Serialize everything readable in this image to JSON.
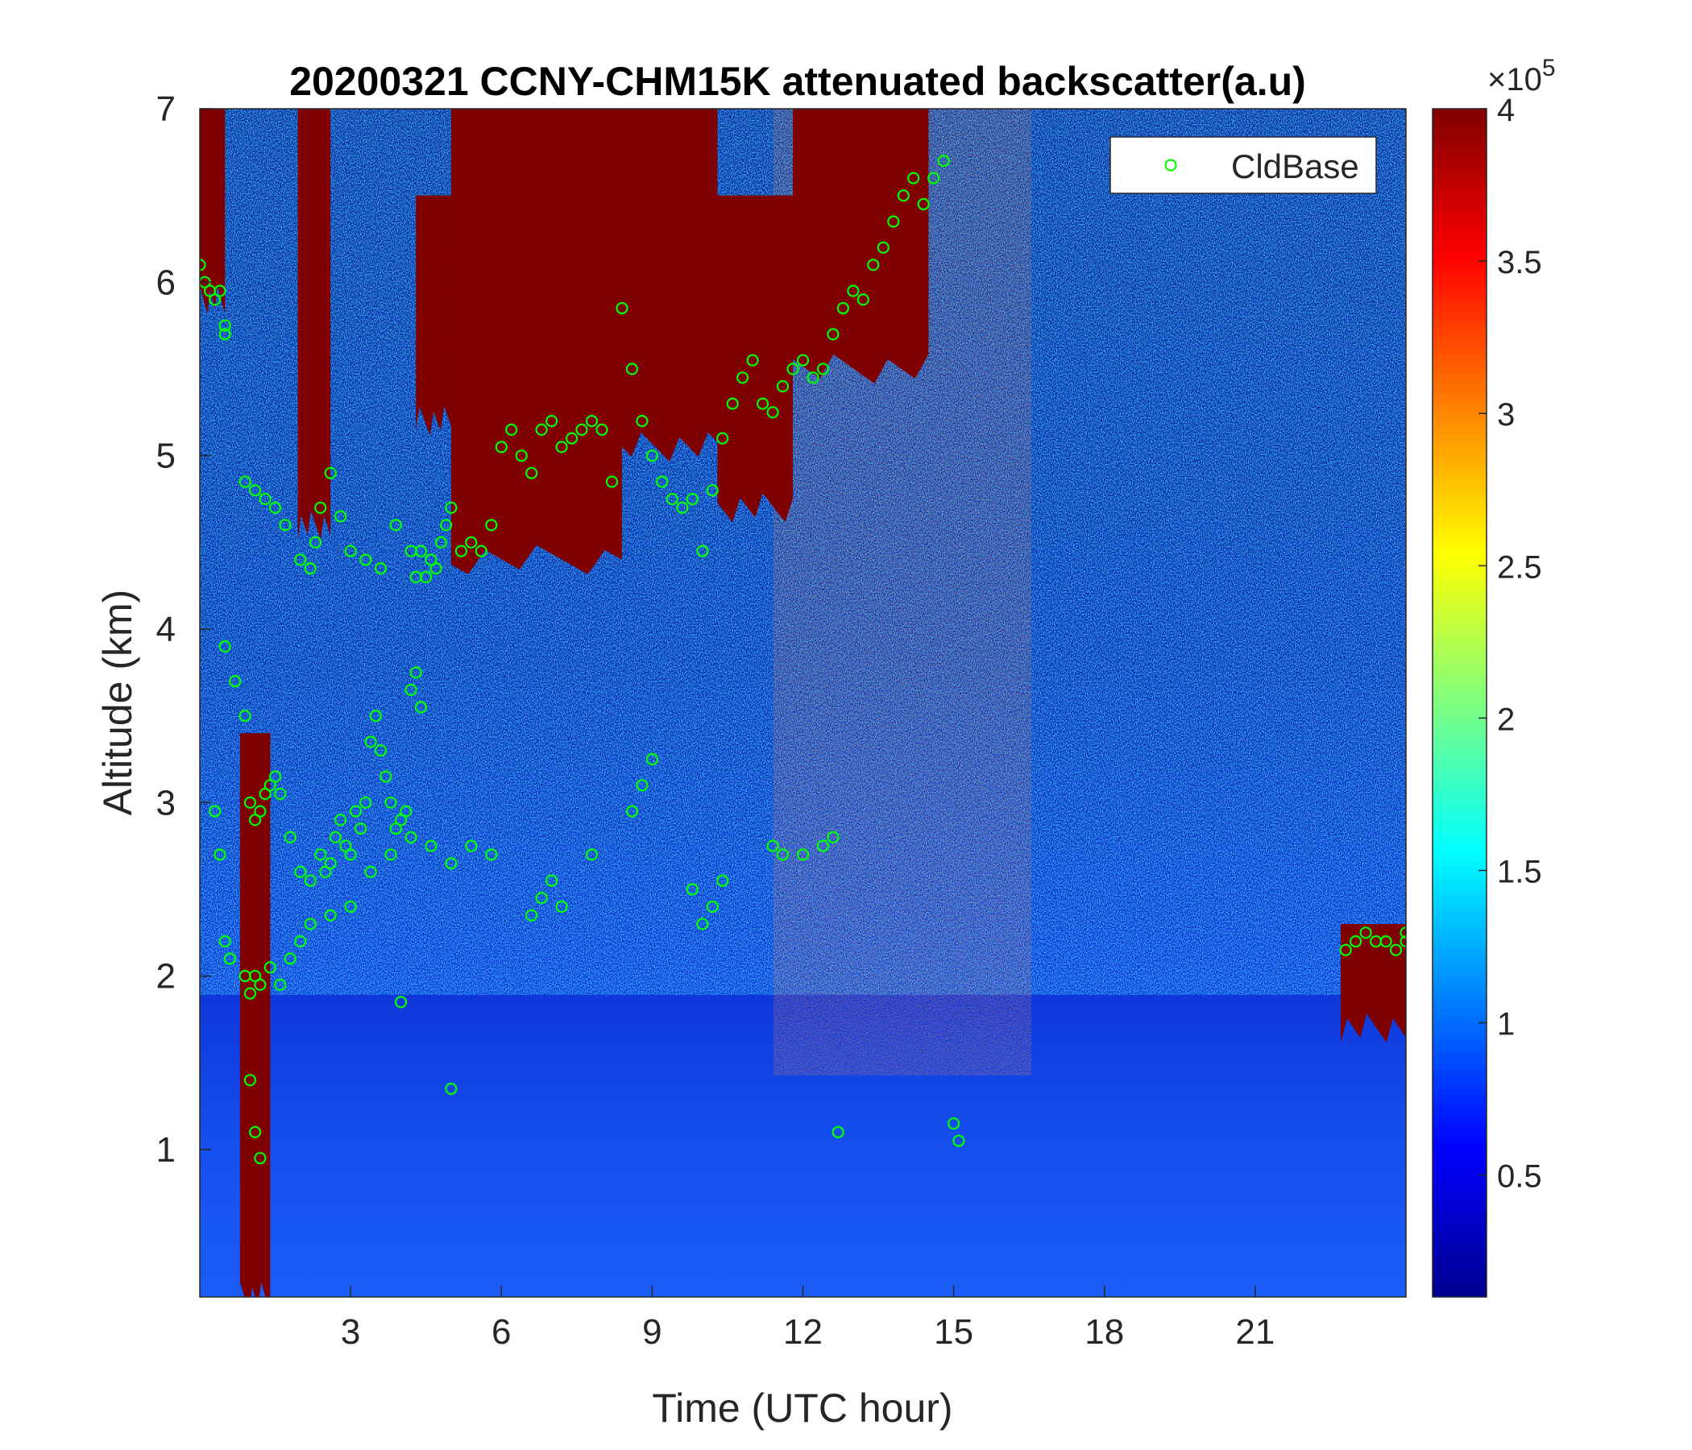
{
  "chart_data": {
    "type": "heatmap",
    "title": "20200321 CCNY-CHM15K attenuated backscatter(a.u)",
    "xlabel": "Time (UTC hour)",
    "ylabel": "Altitude (km)",
    "xlim": [
      0,
      24
    ],
    "ylim": [
      0.15,
      7
    ],
    "x_ticks": [
      3,
      6,
      9,
      12,
      15,
      18,
      21
    ],
    "y_ticks": [
      1,
      2,
      3,
      4,
      5,
      6,
      7
    ],
    "colorbar": {
      "colormap": "jet",
      "clim": [
        0.1,
        4
      ],
      "ticks": [
        0.5,
        1,
        1.5,
        2,
        2.5,
        3,
        3.5,
        4
      ],
      "exponent_label": "×10",
      "exponent": "5"
    },
    "legend": {
      "placement": "top-right",
      "entries": [
        {
          "label": "CldBase",
          "marker": "circle",
          "color": "#00ff00"
        }
      ]
    },
    "cloud_layers": [
      {
        "x": [
          0.0,
          0.5
        ],
        "base": 5.9,
        "top": 7.0
      },
      {
        "x": [
          1.95,
          2.6
        ],
        "base": 4.6,
        "top": 7.0
      },
      {
        "x": [
          4.3,
          5.0
        ],
        "base": 5.2,
        "top": 6.5
      },
      {
        "x": [
          5.0,
          8.4
        ],
        "base": 4.4,
        "top": 7.0
      },
      {
        "x": [
          8.4,
          10.3
        ],
        "base": 5.05,
        "top": 7.0
      },
      {
        "x": [
          10.3,
          11.8
        ],
        "base": 4.7,
        "top": 6.5
      },
      {
        "x": [
          11.8,
          14.5
        ],
        "base": 5.5,
        "top": 7.0
      },
      {
        "x": [
          0.8,
          1.4
        ],
        "base": 0.15,
        "top": 3.4
      },
      {
        "x": [
          22.7,
          24.0
        ],
        "base": 1.7,
        "top": 2.3
      }
    ],
    "series": [
      {
        "name": "CldBase",
        "x": [
          0.0,
          0.1,
          0.2,
          0.3,
          0.4,
          0.5,
          0.5,
          0.9,
          1.1,
          1.3,
          1.5,
          1.7,
          2.0,
          2.2,
          2.3,
          2.4,
          2.6,
          2.8,
          3.0,
          3.3,
          3.6,
          3.9,
          4.2,
          4.3,
          4.4,
          4.5,
          4.6,
          4.7,
          4.8,
          4.9,
          5.0,
          5.2,
          5.4,
          5.6,
          5.8,
          6.0,
          6.2,
          6.4,
          6.6,
          6.8,
          7.0,
          7.2,
          7.4,
          7.6,
          7.8,
          8.0,
          8.2,
          8.4,
          8.6,
          8.8,
          9.0,
          9.2,
          9.4,
          9.6,
          9.8,
          10.0,
          10.2,
          10.4,
          10.6,
          10.8,
          11.0,
          11.2,
          11.4,
          11.6,
          11.8,
          12.0,
          12.2,
          12.4,
          12.6,
          12.8,
          13.0,
          13.2,
          13.4,
          13.6,
          13.8,
          14.0,
          14.2,
          14.4,
          14.6,
          14.8,
          0.3,
          0.5,
          0.7,
          0.9,
          1.0,
          1.1,
          1.2,
          1.3,
          1.4,
          1.5,
          1.6,
          1.8,
          2.0,
          2.2,
          2.4,
          2.5,
          2.6,
          2.7,
          2.8,
          2.9,
          3.0,
          3.1,
          3.2,
          3.3,
          3.4,
          3.5,
          3.6,
          3.7,
          3.8,
          3.9,
          4.0,
          4.1,
          4.2,
          4.3,
          4.4,
          0.9,
          1.0,
          1.1,
          1.2,
          1.4,
          1.6,
          1.8,
          2.0,
          2.2,
          2.6,
          3.0,
          3.4,
          3.8,
          4.2,
          4.6,
          5.0,
          5.4,
          5.8,
          6.6,
          6.8,
          7.0,
          7.2,
          7.8,
          8.6,
          8.8,
          9.0,
          9.8,
          10.0,
          10.2,
          10.4,
          11.4,
          11.6,
          12.0,
          12.4,
          12.6,
          1.0,
          1.1,
          1.2,
          4.0,
          5.0,
          12.7,
          15.0,
          15.1,
          0.4,
          0.5,
          0.6,
          22.8,
          23.0,
          23.2,
          23.4,
          23.6,
          23.8,
          24.0,
          24.0
        ],
        "y": [
          6.1,
          6.0,
          5.95,
          5.9,
          5.95,
          5.75,
          5.7,
          4.85,
          4.8,
          4.75,
          4.7,
          4.6,
          4.4,
          4.35,
          4.5,
          4.7,
          4.9,
          4.65,
          4.45,
          4.4,
          4.35,
          4.6,
          4.45,
          4.3,
          4.45,
          4.3,
          4.4,
          4.35,
          4.5,
          4.6,
          4.7,
          4.45,
          4.5,
          4.45,
          4.6,
          5.05,
          5.15,
          5.0,
          4.9,
          5.15,
          5.2,
          5.05,
          5.1,
          5.15,
          5.2,
          5.15,
          4.85,
          5.85,
          5.5,
          5.2,
          5.0,
          4.85,
          4.75,
          4.7,
          4.75,
          4.45,
          4.8,
          5.1,
          5.3,
          5.45,
          5.55,
          5.3,
          5.25,
          5.4,
          5.5,
          5.55,
          5.45,
          5.5,
          5.7,
          5.85,
          5.95,
          5.9,
          6.1,
          6.2,
          6.35,
          6.5,
          6.6,
          6.45,
          6.6,
          6.7,
          2.95,
          3.9,
          3.7,
          3.5,
          3.0,
          2.9,
          2.95,
          3.05,
          3.1,
          3.15,
          3.05,
          2.8,
          2.6,
          2.55,
          2.7,
          2.6,
          2.65,
          2.8,
          2.9,
          2.75,
          2.7,
          2.95,
          2.85,
          3.0,
          3.35,
          3.5,
          3.3,
          3.15,
          3.0,
          2.85,
          2.9,
          2.95,
          3.65,
          3.75,
          3.55,
          2.0,
          1.9,
          2.0,
          1.95,
          2.05,
          1.95,
          2.1,
          2.2,
          2.3,
          2.35,
          2.4,
          2.6,
          2.7,
          2.8,
          2.75,
          2.65,
          2.75,
          2.7,
          2.35,
          2.45,
          2.55,
          2.4,
          2.7,
          2.95,
          3.1,
          3.25,
          2.5,
          2.3,
          2.4,
          2.55,
          2.75,
          2.7,
          2.7,
          2.75,
          2.8,
          1.4,
          1.1,
          0.95,
          1.85,
          1.35,
          1.1,
          1.15,
          1.05,
          2.7,
          2.2,
          2.1,
          2.15,
          2.2,
          2.25,
          2.2,
          2.2,
          2.15,
          2.2,
          2.25
        ]
      }
    ]
  }
}
